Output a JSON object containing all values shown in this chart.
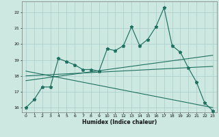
{
  "xlabel": "Humidex (Indice chaleur)",
  "background_color": "#cce8e0",
  "grid_color": "#aacccc",
  "line_color": "#1e7060",
  "xlim": [
    -0.5,
    23.5
  ],
  "ylim": [
    15.7,
    22.7
  ],
  "yticks": [
    16,
    17,
    18,
    19,
    20,
    21,
    22
  ],
  "xticks": [
    0,
    1,
    2,
    3,
    4,
    5,
    6,
    7,
    8,
    9,
    10,
    11,
    12,
    13,
    14,
    15,
    16,
    17,
    18,
    19,
    20,
    21,
    22,
    23
  ],
  "main_y": [
    16.0,
    16.5,
    17.3,
    17.3,
    19.1,
    18.9,
    18.7,
    18.4,
    18.4,
    18.3,
    19.7,
    19.6,
    19.9,
    21.1,
    19.9,
    20.3,
    21.1,
    22.3,
    19.9,
    19.5,
    18.5,
    17.6,
    16.3,
    15.8
  ],
  "trend_up_start": 17.7,
  "trend_up_end": 19.3,
  "trend_flat_start": 18.0,
  "trend_flat_end": 18.6,
  "trend_down_start": 18.3,
  "trend_down_end": 16.0
}
